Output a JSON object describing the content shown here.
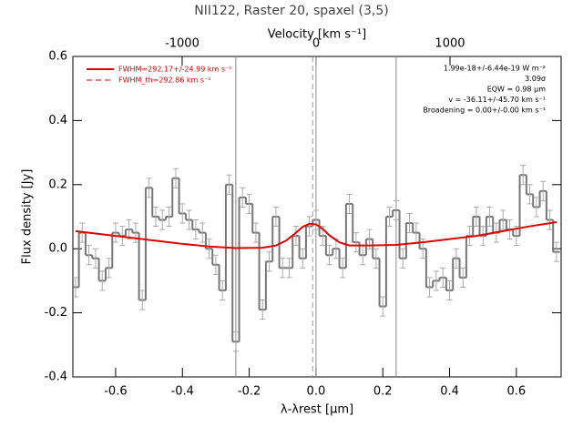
{
  "chart_data": {
    "type": "step",
    "title": "NII122, Raster 20, spaxel (3,5)",
    "x_label": "λ-λrest [μm]",
    "x2_label": "Velocity [km s⁻¹]",
    "y_label": "Flux density [Jy]",
    "xlim": [
      -0.728,
      0.734
    ],
    "xticks": [
      -0.6,
      -0.4,
      -0.2,
      {
        "value": 0,
        "label": "0.0"
      },
      0.2,
      0.4,
      0.6
    ],
    "x2lim": [
      -1816,
      1830
    ],
    "x2ticks": [
      -1000,
      0,
      1000
    ],
    "ylim": [
      -0.4,
      0.6
    ],
    "yticks": [
      -0.4,
      -0.2,
      {
        "value": 0,
        "label": "0.0"
      },
      0.2,
      0.4,
      0.6
    ],
    "x": [
      -0.72,
      -0.7,
      -0.68,
      -0.66,
      -0.64,
      -0.62,
      -0.6,
      -0.58,
      -0.56,
      -0.54,
      -0.52,
      -0.5,
      -0.48,
      -0.46,
      -0.44,
      -0.42,
      -0.4,
      -0.38,
      -0.36,
      -0.34,
      -0.32,
      -0.3,
      -0.28,
      -0.26,
      -0.24,
      -0.22,
      -0.2,
      -0.18,
      -0.16,
      -0.14,
      -0.12,
      -0.1,
      -0.08,
      -0.06,
      -0.04,
      -0.02,
      0,
      0.02,
      0.04,
      0.06,
      0.08,
      0.1,
      0.12,
      0.14,
      0.16,
      0.18,
      0.2,
      0.22,
      0.24,
      0.26,
      0.28,
      0.3,
      0.32,
      0.34,
      0.36,
      0.38,
      0.4,
      0.42,
      0.44,
      0.46,
      0.48,
      0.5,
      0.52,
      0.54,
      0.56,
      0.58,
      0.6,
      0.62,
      0.64,
      0.66,
      0.68,
      0.7,
      0.72
    ],
    "series": [
      {
        "name": "data",
        "color": "#777777",
        "values": [
          -0.12,
          0.05,
          -0.02,
          -0.03,
          -0.1,
          -0.06,
          0.05,
          0.04,
          0.06,
          0.05,
          -0.16,
          0.19,
          0.1,
          0.09,
          0.1,
          0.22,
          0.11,
          0.09,
          0.06,
          0.05,
          0.0,
          -0.05,
          -0.13,
          0.2,
          -0.29,
          0.16,
          0.14,
          0.05,
          -0.19,
          -0.04,
          0.1,
          -0.06,
          -0.06,
          0.04,
          -0.03,
          0.07,
          0.09,
          0.04,
          -0.02,
          0.0,
          -0.06,
          0.14,
          0.02,
          -0.02,
          0.03,
          -0.03,
          -0.18,
          0.1,
          0.12,
          -0.03,
          0.08,
          0.05,
          0.0,
          -0.12,
          -0.1,
          -0.09,
          -0.13,
          -0.03,
          -0.09,
          0.04,
          0.1,
          0.04,
          0.1,
          0.05,
          0.09,
          0.06,
          0.04,
          0.23,
          0.17,
          0.13,
          0.18,
          0.09,
          -0.01
        ],
        "error": 0.03
      }
    ],
    "fit": {
      "name": "FWHM=292.17+/-24.99 km s⁻¹",
      "name_th": "FWHM_th=292.86 km s⁻¹",
      "color": "#e00000",
      "x": [
        -0.72,
        -0.64,
        -0.56,
        -0.48,
        -0.4,
        -0.32,
        -0.24,
        -0.16,
        -0.12,
        -0.09,
        -0.06,
        -0.04,
        -0.02,
        0,
        0.02,
        0.04,
        0.07,
        0.1,
        0.16,
        0.24,
        0.32,
        0.4,
        0.48,
        0.56,
        0.64,
        0.72
      ],
      "values": [
        0.055,
        0.045,
        0.035,
        0.025,
        0.015,
        0.007,
        0.002,
        0.003,
        0.01,
        0.025,
        0.05,
        0.068,
        0.078,
        0.076,
        0.062,
        0.042,
        0.02,
        0.01,
        0.01,
        0.012,
        0.02,
        0.03,
        0.04,
        0.055,
        0.07,
        0.083
      ]
    },
    "vlines": [
      -0.24,
      0,
      0.24
    ],
    "dashed_vline": -0.01,
    "annotations": [
      "1.99e-18+/-6.44e-19 W m⁻²",
      "3.09σ",
      "EQW = 0.98 μm",
      "v = -36.11+/-45.70 km s⁻¹",
      "Broadening = 0.00+/-0.00 km s⁻¹"
    ]
  }
}
